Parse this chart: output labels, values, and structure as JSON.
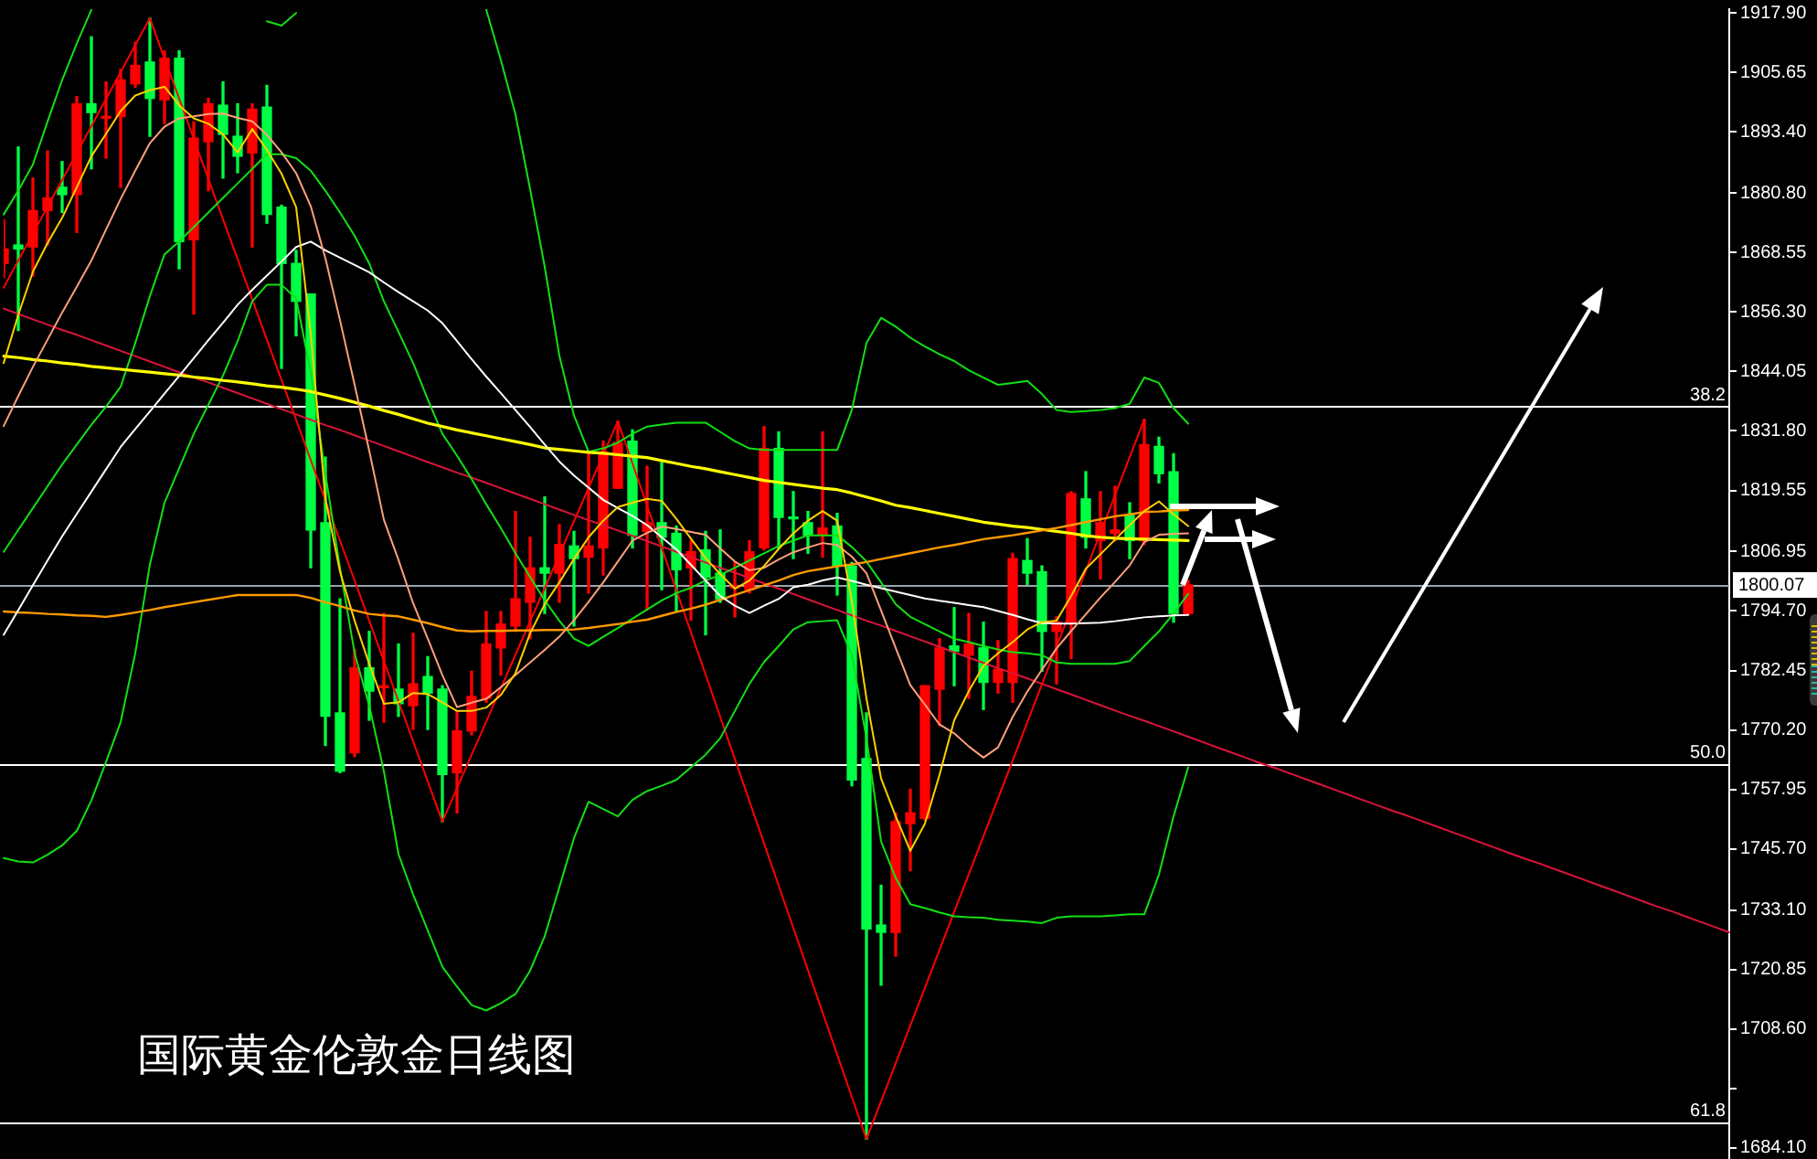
{
  "chart_data": {
    "type": "candlestick",
    "title": "国际黄金伦敦金日线图",
    "categories": [
      null,
      null,
      null,
      null,
      null,
      null,
      null,
      null,
      null,
      null,
      null,
      null,
      null,
      null,
      null,
      null,
      null,
      null,
      null,
      null,
      null,
      null,
      null,
      null,
      null,
      null,
      null,
      null,
      null,
      null,
      null,
      null,
      null,
      null,
      null,
      null,
      null,
      null,
      null,
      null,
      null,
      null,
      null,
      null,
      null,
      null,
      null,
      null,
      null,
      null,
      null,
      null,
      null,
      null,
      null,
      null,
      null,
      null,
      null,
      null,
      null,
      null,
      null,
      null,
      null,
      null,
      null,
      null,
      null,
      null,
      null,
      null,
      null,
      null,
      null,
      null,
      null,
      null,
      null,
      null,
      null,
      null,
      null,
      null,
      null,
      null,
      null,
      null,
      null,
      null,
      null,
      null,
      null,
      null,
      null,
      null,
      null,
      null,
      null,
      null,
      null,
      null,
      null,
      null,
      null,
      null,
      null,
      null,
      null,
      null,
      null,
      null,
      null,
      null,
      null,
      null,
      null,
      null,
      null
    ],
    "ohlc": [
      [
        1866.3,
        1875.3,
        1863.4,
        1869.3
      ],
      [
        1870.1,
        1890.3,
        1852.5,
        1869.3
      ],
      [
        1869.7,
        1883.9,
        1863.7,
        1877.2
      ],
      [
        1877.2,
        1889.5,
        1870.1,
        1879.8
      ],
      [
        1882.0,
        1887.3,
        1876.8,
        1880.5
      ],
      [
        1880.5,
        1900.7,
        1872.7,
        1899.2
      ],
      [
        1899.2,
        1913.0,
        1885.8,
        1897.4
      ],
      [
        1896.2,
        1903.7,
        1888.0,
        1896.6
      ],
      [
        1896.6,
        1906.3,
        1882.0,
        1904.1
      ],
      [
        1903.3,
        1911.9,
        1902.6,
        1907.1
      ],
      [
        1907.8,
        1916.8,
        1892.5,
        1900.3
      ],
      [
        1900.0,
        1910.1,
        1895.1,
        1908.6
      ],
      [
        1908.6,
        1910.1,
        1865.2,
        1870.8
      ],
      [
        1871.2,
        1895.5,
        1855.9,
        1892.1
      ],
      [
        1891.4,
        1900.3,
        1881.3,
        1899.2
      ],
      [
        1898.9,
        1903.7,
        1883.9,
        1892.9
      ],
      [
        1892.5,
        1899.2,
        1885.0,
        1888.4
      ],
      [
        1889.1,
        1899.2,
        1869.7,
        1898.1
      ],
      [
        1898.5,
        1903.0,
        1874.6,
        1876.4
      ],
      [
        1877.9,
        1878.3,
        1844.7,
        1866.3
      ],
      [
        1866.3,
        1869.0,
        1851.4,
        1858.5
      ],
      [
        1860.0,
        1860.0,
        1803.6,
        1811.4
      ],
      [
        1812.9,
        1826.4,
        1767.0,
        1773.0
      ],
      [
        1773.7,
        1797.2,
        1761.4,
        1761.7
      ],
      [
        1765.5,
        1786.8,
        1764.7,
        1783.0
      ],
      [
        1783.0,
        1790.5,
        1772.2,
        1778.2
      ],
      [
        1778.9,
        1794.2,
        1771.8,
        1779.3
      ],
      [
        1778.6,
        1787.9,
        1773.0,
        1775.6
      ],
      [
        1775.2,
        1790.1,
        1770.3,
        1779.7
      ],
      [
        1781.2,
        1785.3,
        1770.3,
        1777.8
      ],
      [
        1778.6,
        1779.3,
        1751.3,
        1761.0
      ],
      [
        1761.4,
        1774.1,
        1753.1,
        1770.0
      ],
      [
        1770.0,
        1782.3,
        1769.2,
        1777.1
      ],
      [
        1776.7,
        1794.6,
        1775.9,
        1787.9
      ],
      [
        1787.1,
        1794.6,
        1781.5,
        1792.0
      ],
      [
        1791.6,
        1815.2,
        1790.5,
        1797.2
      ],
      [
        1796.5,
        1809.9,
        1789.0,
        1803.6
      ],
      [
        1803.6,
        1818.2,
        1794.2,
        1802.5
      ],
      [
        1802.5,
        1812.5,
        1796.5,
        1808.4
      ],
      [
        1808.1,
        1811.1,
        1791.6,
        1805.5
      ],
      [
        1805.8,
        1827.1,
        1798.4,
        1808.1
      ],
      [
        1807.7,
        1829.7,
        1802.1,
        1827.5
      ],
      [
        1820.0,
        1833.8,
        1820.0,
        1829.4
      ],
      [
        1829.7,
        1832.0,
        1807.7,
        1810.3
      ],
      [
        1811.1,
        1824.5,
        1795.0,
        1812.9
      ],
      [
        1812.9,
        1825.3,
        1799.1,
        1809.9
      ],
      [
        1810.7,
        1812.2,
        1794.6,
        1803.2
      ],
      [
        1803.6,
        1809.2,
        1792.8,
        1806.9
      ],
      [
        1807.3,
        1811.1,
        1789.8,
        1801.7
      ],
      [
        1802.5,
        1811.4,
        1796.5,
        1797.2
      ],
      [
        1799.5,
        1804.7,
        1793.5,
        1799.8
      ],
      [
        1799.1,
        1809.2,
        1798.4,
        1806.9
      ],
      [
        1807.7,
        1832.7,
        1807.3,
        1828.2
      ],
      [
        1828.2,
        1831.6,
        1807.7,
        1814.0
      ],
      [
        1814.0,
        1819.3,
        1805.5,
        1813.7
      ],
      [
        1812.9,
        1815.2,
        1806.6,
        1810.3
      ],
      [
        1810.3,
        1831.6,
        1805.8,
        1811.8
      ],
      [
        1812.2,
        1814.8,
        1798.0,
        1804.0
      ],
      [
        1804.0,
        1804.7,
        1758.7,
        1759.9
      ],
      [
        1764.3,
        1773.7,
        1685.9,
        1729.2
      ],
      [
        1730.0,
        1738.2,
        1717.6,
        1728.5
      ],
      [
        1728.5,
        1753.1,
        1723.6,
        1751.3
      ],
      [
        1750.9,
        1758.0,
        1741.2,
        1753.1
      ],
      [
        1752.0,
        1779.3,
        1751.6,
        1779.3
      ],
      [
        1778.6,
        1789.0,
        1771.1,
        1787.1
      ],
      [
        1787.5,
        1795.4,
        1779.3,
        1786.4
      ],
      [
        1785.6,
        1794.2,
        1776.7,
        1787.9
      ],
      [
        1787.1,
        1792.4,
        1774.4,
        1780.0
      ],
      [
        1780.0,
        1788.6,
        1777.8,
        1782.7
      ],
      [
        1780.0,
        1806.6,
        1775.9,
        1805.5
      ],
      [
        1805.1,
        1809.6,
        1800.2,
        1802.5
      ],
      [
        1802.8,
        1804.0,
        1782.3,
        1790.5
      ],
      [
        1790.5,
        1793.5,
        1779.7,
        1792.4
      ],
      [
        1792.4,
        1819.3,
        1784.9,
        1818.9
      ],
      [
        1817.8,
        1823.4,
        1807.7,
        1809.9
      ],
      [
        1809.2,
        1819.3,
        1801.3,
        1812.9
      ],
      [
        1810.7,
        1820.4,
        1809.2,
        1811.4
      ],
      [
        1814.4,
        1817.0,
        1805.5,
        1809.2
      ],
      [
        1809.2,
        1834.2,
        1808.4,
        1829.0
      ],
      [
        1828.6,
        1830.5,
        1821.1,
        1823.0
      ],
      [
        1823.4,
        1827.1,
        1792.4,
        1794.2
      ],
      [
        1794.2,
        1801.0,
        1793.9,
        1800.07
      ],
      null,
      null,
      null,
      null,
      null,
      null,
      null,
      null,
      null,
      null,
      null,
      null,
      null,
      null,
      null,
      null,
      null,
      null,
      null,
      null,
      null,
      null,
      null,
      null,
      null,
      null,
      null,
      null,
      null,
      null,
      null,
      null,
      null,
      null,
      null,
      null,
      null
    ],
    "colors": [
      "#ff0000",
      "#00ff44",
      "#ff0000",
      "#ff0000",
      "#00ff44",
      "#ff0000",
      "#00ff44",
      "#ff0000",
      "#ff0000",
      "#ff0000",
      "#00ff44",
      "#ff0000",
      "#00ff44",
      "#ff0000",
      "#ff0000",
      "#00ff44",
      "#00ff44",
      "#ff0000",
      "#00ff44",
      "#00ff44",
      "#00ff44",
      "#00ff44",
      "#00ff44",
      "#00ff44",
      "#ff0000",
      "#00ff44",
      "#ff0000",
      "#00ff44",
      "#ff0000",
      "#00ff44",
      "#00ff44",
      "#ff0000",
      "#ff0000",
      "#ff0000",
      "#ff0000",
      "#ff0000",
      "#ff0000",
      "#00ff44",
      "#ff0000",
      "#00ff44",
      "#ff0000",
      "#ff0000",
      "#ff0000",
      "#00ff44",
      "#ff0000",
      "#00ff44",
      "#00ff44",
      "#ff0000",
      "#00ff44",
      "#00ff44",
      "#ff0000",
      "#ff0000",
      "#ff0000",
      "#00ff44",
      "#00ff44",
      "#00ff44",
      "#ff0000",
      "#00ff44",
      "#00ff44",
      "#00ff44",
      "#00ff44",
      "#ff0000",
      "#ff0000",
      "#ff0000",
      "#ff0000",
      "#00ff44",
      "#ff0000",
      "#00ff44",
      "#ff0000",
      "#ff0000",
      "#00ff44",
      "#00ff44",
      "#ff0000",
      "#ff0000",
      "#00ff44",
      "#ff0000",
      "#ff0000",
      "#00ff44",
      "#ff0000",
      "#00ff44",
      "#00ff44",
      "#ff0000",
      null,
      null,
      null,
      null,
      null,
      null,
      null,
      null,
      null,
      null,
      null,
      null,
      null,
      null,
      null,
      null,
      null,
      null,
      null,
      null,
      null,
      null,
      null,
      null,
      null,
      null,
      null,
      null,
      null,
      null,
      null,
      null,
      null,
      null,
      null,
      null,
      null
    ],
    "series": [
      {
        "type": "line",
        "color": "#dc143c",
        "values": [
          1857.0,
          1855.9,
          1854.8,
          1853.7,
          1852.6,
          1851.6,
          1850.5,
          1849.4,
          1848.3,
          1847.2,
          1846.1,
          1845.0,
          1843.9,
          1842.8,
          1841.8,
          1840.7,
          1839.6,
          1838.5,
          1837.4,
          1836.3,
          1835.2,
          1834.1,
          1833.0,
          1832.0,
          1830.9,
          1829.8,
          1828.7,
          1827.6,
          1826.5,
          1825.4,
          1824.3,
          1823.2,
          1822.2,
          1821.1,
          1820.0,
          1818.9,
          1817.8,
          1816.7,
          1815.6,
          1814.5,
          1813.4,
          1812.4,
          1811.3,
          1810.2,
          1809.1,
          1808.0,
          1806.9,
          1805.8,
          1804.7,
          1803.6,
          1802.6,
          1801.5,
          1800.4,
          1799.3,
          1798.2,
          1797.1,
          1796.0,
          1794.9,
          1793.8,
          1792.7,
          1791.7,
          1790.6,
          1789.5,
          1788.4,
          1787.3,
          1786.2,
          1785.1,
          1784.0,
          1782.9,
          1781.9,
          1780.8,
          1779.7,
          1778.6,
          1777.5,
          1776.4,
          1775.3,
          1774.2,
          1773.1,
          1772.1,
          1771.0,
          1769.9,
          1768.8,
          1767.7,
          1766.6,
          1765.5,
          1764.4,
          1763.3,
          1762.3,
          1761.2,
          1760.1,
          1759.0,
          1757.9,
          1756.8,
          1755.7,
          1754.6,
          1753.5,
          1752.5,
          1751.4,
          1750.3,
          1749.2,
          1748.1,
          1747.0,
          1745.9,
          1744.8,
          1743.7,
          1742.7,
          1741.6,
          1740.5,
          1739.4,
          1738.3,
          1737.2,
          1736.1,
          1735.0,
          1733.9,
          1732.9,
          1731.8,
          1730.7,
          1729.6,
          1728.5
        ]
      },
      {
        "type": "line",
        "color": "#ff0000",
        "values": [
          1861.3,
          1866.9,
          1872.4,
          1878.0,
          1883.5,
          1889.1,
          1894.6,
          1900.2,
          1905.7,
          1911.3,
          1916.8,
          1908.5,
          1900.3,
          1892.0,
          1883.7,
          1875.4,
          1867.2,
          1858.9,
          1850.6,
          1842.3,
          1834.1,
          1825.8,
          1817.5,
          1809.2,
          1801.0,
          1792.7,
          1784.4,
          1776.1,
          1767.9,
          1759.6,
          1751.3,
          1758.2,
          1765.1,
          1771.9,
          1778.8,
          1785.7,
          1792.6,
          1799.4,
          1806.3,
          1813.2,
          1820.1,
          1826.9,
          1833.8,
          1825.1,
          1816.4,
          1807.7,
          1799.0,
          1790.3,
          1781.6,
          1772.9,
          1764.2,
          1755.5,
          1746.8,
          1738.1,
          1729.4,
          1720.7,
          1712.0,
          1703.3,
          1694.6,
          1685.9,
          1693.7,
          1701.5,
          1709.3,
          1717.1,
          1724.9,
          1732.7,
          1740.5,
          1748.3,
          1756.1,
          1763.9,
          1771.8,
          1779.6,
          1787.4,
          1795.2,
          1803.0,
          1810.8,
          1818.6,
          1826.4,
          1834.2,
          null,
          null,
          null,
          null,
          null,
          null,
          null,
          null,
          null,
          null,
          null,
          null,
          null,
          null,
          null,
          null,
          null,
          null,
          null,
          null,
          null,
          null,
          null,
          null,
          null,
          null,
          null,
          null,
          null,
          null,
          null,
          null,
          null,
          null,
          null,
          null,
          null,
          null,
          null,
          null
        ]
      },
      {
        "type": "line",
        "color": "#12e012",
        "values": [
          1876.4,
          1881.3,
          1886.7,
          1895.5,
          1904.1,
          1911.6,
          1918.6,
          null,
          null,
          null,
          null,
          null,
          null,
          null,
          null,
          null,
          null,
          null,
          1916.2,
          1915.3,
          1917.9,
          null,
          null,
          null,
          null,
          null,
          null,
          null,
          null,
          null,
          null,
          null,
          null,
          1918.6,
          1908.2,
          1897.0,
          1881.6,
          1865.6,
          1847.3,
          1835.0,
          1827.5,
          1828.2,
          1829.4,
          1831.2,
          1832.7,
          1833.1,
          1833.5,
          1833.5,
          1833.5,
          1831.6,
          1829.7,
          1828.2,
          1827.9,
          1827.9,
          1827.9,
          1827.9,
          1827.9,
          1827.9,
          1836.1,
          1849.9,
          1855.1,
          1853.3,
          1851.0,
          1849.2,
          1847.6,
          1846.2,
          1844.3,
          1842.8,
          1841.3,
          1841.7,
          1842.1,
          1839.4,
          1836.1,
          1835.7,
          1835.9,
          1836.1,
          1836.5,
          1837.4,
          1842.8,
          1841.7,
          1836.5,
          1833.3,
          null,
          null,
          null,
          null,
          null,
          null,
          null,
          null,
          null,
          null,
          null,
          null,
          null,
          null,
          null,
          null,
          null,
          null,
          null,
          null,
          null,
          null,
          null,
          null,
          null,
          null,
          null,
          null,
          null,
          null,
          null,
          null,
          null,
          null,
          null,
          null,
          null
        ]
      },
      {
        "type": "line",
        "color": "#12e012",
        "values": [
          1806.9,
          1811.4,
          1815.9,
          1820.4,
          1824.9,
          1829.0,
          1833.1,
          1836.8,
          1840.9,
          1849.9,
          1859.6,
          1868.2,
          1870.8,
          1873.8,
          1876.8,
          1879.8,
          1882.8,
          1885.8,
          1888.8,
          1888.8,
          1888.0,
          1885.4,
          1881.3,
          1876.8,
          1872.0,
          1866.3,
          1858.5,
          1852.2,
          1845.8,
          1838.3,
          1831.2,
          1826.7,
          1821.9,
          1816.7,
          1811.8,
          1806.6,
          1801.7,
          1796.9,
          1792.7,
          1789.0,
          1787.5,
          1789.4,
          1791.2,
          1793.1,
          1795.0,
          1796.9,
          1798.4,
          1799.5,
          1801.0,
          1802.1,
          1803.6,
          1805.1,
          1806.6,
          1808.1,
          1809.2,
          1810.3,
          1810.3,
          1810.3,
          1807.9,
          1804.9,
          1800.6,
          1796.1,
          1793.5,
          1792.0,
          1790.5,
          1789.0,
          1788.3,
          1787.5,
          1786.8,
          1786.2,
          1786.0,
          1785.6,
          1784.1,
          1783.8,
          1783.8,
          1783.8,
          1783.8,
          1784.4,
          1787.5,
          1790.5,
          1794.2,
          1798.2,
          null,
          null,
          null,
          null,
          null,
          null,
          null,
          null,
          null,
          null,
          null,
          null,
          null,
          null,
          null,
          null,
          null,
          null,
          null,
          null,
          null,
          null,
          null,
          null,
          null,
          null,
          null,
          null,
          null,
          null,
          null,
          null,
          null,
          null,
          null,
          null,
          null
        ]
      },
      {
        "type": "line",
        "color": "#12e012",
        "values": [
          1743.8,
          1743.1,
          1742.9,
          1744.5,
          1746.4,
          1749.4,
          1755.7,
          1763.6,
          1771.8,
          1786.0,
          1804.3,
          1817.0,
          1824.1,
          1831.2,
          1837.2,
          1843.2,
          1850.3,
          1858.5,
          1861.9,
          1861.9,
          1859.1,
          1843.9,
          1823.0,
          1803.6,
          1786.0,
          1775.2,
          1761.7,
          1744.6,
          1736.3,
          1728.9,
          1721.4,
          1717.3,
          1713.5,
          1712.4,
          1713.9,
          1715.8,
          1720.6,
          1727.7,
          1737.8,
          1747.9,
          1755.4,
          1753.9,
          1752.4,
          1755.8,
          1757.6,
          1758.7,
          1759.9,
          1762.5,
          1765.1,
          1768.5,
          1774.1,
          1779.7,
          1784.2,
          1787.5,
          1790.9,
          1792.4,
          1792.6,
          1792.8,
          1785.6,
          1768.5,
          1747.2,
          1739.7,
          1734.3,
          1733.5,
          1732.6,
          1731.8,
          1731.6,
          1731.5,
          1731.1,
          1730.9,
          1730.7,
          1730.4,
          1731.5,
          1731.8,
          1731.8,
          1731.8,
          1732.0,
          1732.2,
          1732.2,
          1740.4,
          1752.4,
          1762.5,
          null,
          null,
          null,
          null,
          null,
          null,
          null,
          null,
          null,
          null,
          null,
          null,
          null,
          null,
          null,
          null,
          null,
          null,
          null,
          null,
          null,
          null,
          null,
          null,
          null,
          null,
          null,
          null,
          null,
          null,
          null,
          null,
          null,
          null,
          null,
          null,
          null
        ]
      },
      {
        "type": "line",
        "color": "#ffff00",
        "values": [
          1847.2,
          1846.9,
          1846.5,
          1846.2,
          1845.8,
          1845.5,
          1845.1,
          1844.8,
          1844.5,
          1844.2,
          1843.9,
          1843.6,
          1843.3,
          1842.9,
          1842.6,
          1842.2,
          1841.9,
          1841.5,
          1841.1,
          1840.8,
          1840.4,
          1839.9,
          1839.2,
          1838.5,
          1837.7,
          1836.9,
          1836.0,
          1835.2,
          1834.3,
          1833.4,
          1832.7,
          1832.0,
          1831.4,
          1830.8,
          1830.2,
          1829.6,
          1829.0,
          1828.3,
          1828.0,
          1827.7,
          1827.4,
          1827.2,
          1826.9,
          1826.6,
          1826.3,
          1825.7,
          1825.1,
          1824.5,
          1824.0,
          1823.4,
          1822.8,
          1822.2,
          1821.6,
          1821.2,
          1820.8,
          1820.4,
          1820.0,
          1819.7,
          1819.0,
          1818.2,
          1817.4,
          1816.5,
          1816.0,
          1815.4,
          1814.8,
          1814.2,
          1813.6,
          1813.0,
          1812.6,
          1812.2,
          1811.9,
          1811.5,
          1811.1,
          1810.7,
          1810.2,
          1809.9,
          1809.7,
          1809.6,
          1809.5,
          1809.4,
          1809.3,
          1809.2,
          null,
          null,
          null,
          null,
          null,
          null,
          null,
          null,
          null,
          null,
          null,
          null,
          null,
          null,
          null,
          null,
          null,
          null,
          null,
          null,
          null,
          null,
          null,
          null,
          null,
          null,
          null,
          null,
          null,
          null,
          null,
          null,
          null,
          null,
          null,
          null,
          null
        ]
      },
      {
        "type": "line",
        "color": "#ff9900",
        "values": [
          1794.6,
          1794.4,
          1794.3,
          1794.1,
          1794.0,
          1793.8,
          1793.7,
          1793.5,
          1793.9,
          1794.4,
          1794.9,
          1795.5,
          1796.0,
          1796.5,
          1797.0,
          1797.5,
          1798.0,
          1798.0,
          1798.0,
          1798.0,
          1798.0,
          1797.4,
          1796.5,
          1795.7,
          1794.8,
          1794.1,
          1793.8,
          1793.6,
          1792.9,
          1792.2,
          1791.4,
          1790.7,
          1790.5,
          1790.6,
          1790.6,
          1790.7,
          1790.7,
          1790.8,
          1790.8,
          1790.9,
          1791.2,
          1791.6,
          1792.0,
          1792.5,
          1792.9,
          1793.7,
          1794.5,
          1795.2,
          1796.0,
          1797.0,
          1798.0,
          1799.0,
          1800.0,
          1801.0,
          1802.1,
          1802.9,
          1803.4,
          1803.9,
          1804.3,
          1804.8,
          1805.4,
          1806.0,
          1806.6,
          1807.2,
          1807.8,
          1808.3,
          1808.9,
          1809.5,
          1809.9,
          1810.3,
          1810.8,
          1811.3,
          1811.8,
          1812.4,
          1813.0,
          1813.6,
          1814.2,
          1814.6,
          1815.1,
          1815.2,
          1815.4,
          1815.5,
          null,
          null,
          null,
          null,
          null,
          null,
          null,
          null,
          null,
          null,
          null,
          null,
          null,
          null,
          null,
          null,
          null,
          null,
          null,
          null,
          null,
          null,
          null,
          null,
          null,
          null,
          null,
          null,
          null,
          null,
          null,
          null,
          null,
          null,
          null,
          null,
          null
        ]
      },
      {
        "type": "line",
        "color": "#ffffff",
        "values": [
          1789.8,
          1794.9,
          1800.0,
          1805.1,
          1810.1,
          1814.7,
          1819.3,
          1823.9,
          1828.5,
          1832.2,
          1835.8,
          1839.5,
          1843.1,
          1846.8,
          1850.5,
          1854.1,
          1857.8,
          1860.9,
          1863.8,
          1866.7,
          1869.7,
          1870.8,
          1869.0,
          1867.5,
          1866.0,
          1864.5,
          1862.4,
          1860.4,
          1858.5,
          1856.6,
          1854.0,
          1850.3,
          1846.6,
          1843.0,
          1839.6,
          1836.1,
          1832.6,
          1829.0,
          1825.5,
          1822.6,
          1820.1,
          1817.6,
          1815.9,
          1814.3,
          1812.4,
          1809.9,
          1807.4,
          1804.2,
          1801.0,
          1797.8,
          1795.8,
          1794.3,
          1795.8,
          1797.2,
          1799.6,
          1800.1,
          1801.0,
          1801.6,
          1800.9,
          1800.1,
          1799.4,
          1798.7,
          1798.0,
          1797.3,
          1796.8,
          1796.4,
          1795.9,
          1795.5,
          1794.7,
          1793.9,
          1793.0,
          1792.2,
          1792.1,
          1792.1,
          1792.2,
          1792.3,
          1792.6,
          1793.0,
          1793.4,
          1793.6,
          1793.8,
          1793.9,
          null,
          null,
          null,
          null,
          null,
          null,
          null,
          null,
          null,
          null,
          null,
          null,
          null,
          null,
          null,
          null,
          null,
          null,
          null,
          null,
          null,
          null,
          null,
          null,
          null,
          null,
          null,
          null,
          null,
          null,
          null,
          null,
          null,
          null,
          null,
          null,
          null
        ]
      },
      {
        "type": "line",
        "color": "#ffa07a",
        "values": [
          1832.8,
          1839.0,
          1845.0,
          1850.6,
          1856.2,
          1861.5,
          1866.9,
          1873.3,
          1879.6,
          1885.4,
          1891.1,
          1894.5,
          1896.2,
          1896.6,
          1897.1,
          1897.2,
          1896.3,
          1895.6,
          1892.8,
          1889.2,
          1884.9,
          1878.1,
          1867.4,
          1854.6,
          1841.3,
          1827.7,
          1813.5,
          1805.2,
          1796.3,
          1789.0,
          1781.5,
          1774.9,
          1775.8,
          1776.6,
          1779.0,
          1781.5,
          1784.1,
          1786.7,
          1789.4,
          1792.8,
          1796.6,
          1800.6,
          1804.9,
          1809.2,
          1810.8,
          1812.1,
          1811.6,
          1811.0,
          1810.4,
          1807.6,
          1804.9,
          1803.1,
          1803.6,
          1805.3,
          1806.8,
          1807.8,
          1808.7,
          1808.3,
          1805.9,
          1802.5,
          1794.8,
          1787.1,
          1779.4,
          1775.4,
          1771.3,
          1769.5,
          1766.8,
          1764.5,
          1766.6,
          1772.9,
          1778.1,
          1782.6,
          1787.0,
          1790.6,
          1794.0,
          1797.5,
          1800.7,
          1804.1,
          1808.9,
          1810.4,
          1810.6,
          1810.7,
          null,
          null,
          null,
          null,
          null,
          null,
          null,
          null,
          null,
          null,
          null,
          null,
          null,
          null,
          null,
          null,
          null,
          null,
          null,
          null,
          null,
          null,
          null,
          null,
          null,
          null,
          null,
          null,
          null,
          null,
          null,
          null,
          null,
          null,
          null,
          null,
          null
        ]
      },
      {
        "type": "line",
        "color": "#ffd000",
        "values": [
          1845.8,
          1855.7,
          1864.6,
          1870.5,
          1875.7,
          1882.0,
          1888.4,
          1893.0,
          1897.7,
          1900.9,
          1902.0,
          1902.7,
          1898.9,
          1896.2,
          1895.1,
          1892.9,
          1889.2,
          1894.0,
          1889.7,
          1884.8,
          1877.9,
          1851.8,
          1817.8,
          1802.8,
          1792.7,
          1783.8,
          1775.6,
          1775.9,
          1777.8,
          1777.6,
          1775.9,
          1774.1,
          1774.1,
          1774.8,
          1777.4,
          1781.9,
          1790.1,
          1796.1,
          1800.6,
          1805.4,
          1809.9,
          1813.3,
          1816.1,
          1817.0,
          1817.8,
          1817.4,
          1813.7,
          1809.6,
          1805.6,
          1802.3,
          1799.3,
          1801.0,
          1804.0,
          1807.5,
          1810.7,
          1813.3,
          1815.3,
          1813.3,
          1796.7,
          1776.7,
          1760.2,
          1752.4,
          1745.3,
          1750.9,
          1761.0,
          1772.2,
          1778.2,
          1783.4,
          1786.0,
          1788.3,
          1790.9,
          1792.4,
          1792.7,
          1797.8,
          1803.4,
          1806.4,
          1809.4,
          1812.4,
          1815.3,
          1817.3,
          1814.6,
          1812.2,
          null,
          null,
          null,
          null,
          null,
          null,
          null,
          null,
          null,
          null,
          null,
          null,
          null,
          null,
          null,
          null,
          null,
          null,
          null,
          null,
          null,
          null,
          null,
          null,
          null,
          null,
          null,
          null,
          null,
          null,
          null,
          null,
          null,
          null,
          null,
          null,
          null
        ]
      }
    ],
    "ylim": [
      1681.8,
      1918.7
    ],
    "yticks": [
      {
        "value": 1917.9,
        "label": "1917.90"
      },
      1905.65,
      {
        "value": 1893.4,
        "label": "1893.40"
      },
      {
        "value": 1880.8,
        "label": "1880.80"
      },
      1868.55,
      {
        "value": 1856.3,
        "label": "1856.30"
      },
      1844.05,
      {
        "value": 1831.8,
        "label": "1831.80"
      },
      1819.55,
      1806.95,
      {
        "value": 1794.7,
        "label": "1794.70"
      },
      1782.45,
      {
        "value": 1770.2,
        "label": "1770.20"
      },
      1757.95,
      {
        "value": 1745.7,
        "label": "1745.70"
      },
      {
        "value": 1733.1,
        "label": "1733.10"
      },
      1720.85,
      {
        "value": 1708.6,
        "label": "1708.60"
      },
      {
        "value": 1696.35,
        "label": null
      },
      {
        "value": 1684.1,
        "label": "1684.10"
      }
    ],
    "tick_labels": "y",
    "ref_lines": [
      {
        "axis": "y",
        "value": 1836.8,
        "color": "#ffffff"
      },
      {
        "axis": "y",
        "value": 1800.07,
        "label": "1800.07",
        "color": "#9aa4ae"
      },
      {
        "axis": "y",
        "value": 1763.2,
        "color": "#ffffff"
      },
      {
        "axis": "y",
        "value": 1689.4,
        "color": "#ffffff"
      }
    ],
    "annotations": [
      "38.2",
      "50.0",
      "61.8"
    ]
  }
}
